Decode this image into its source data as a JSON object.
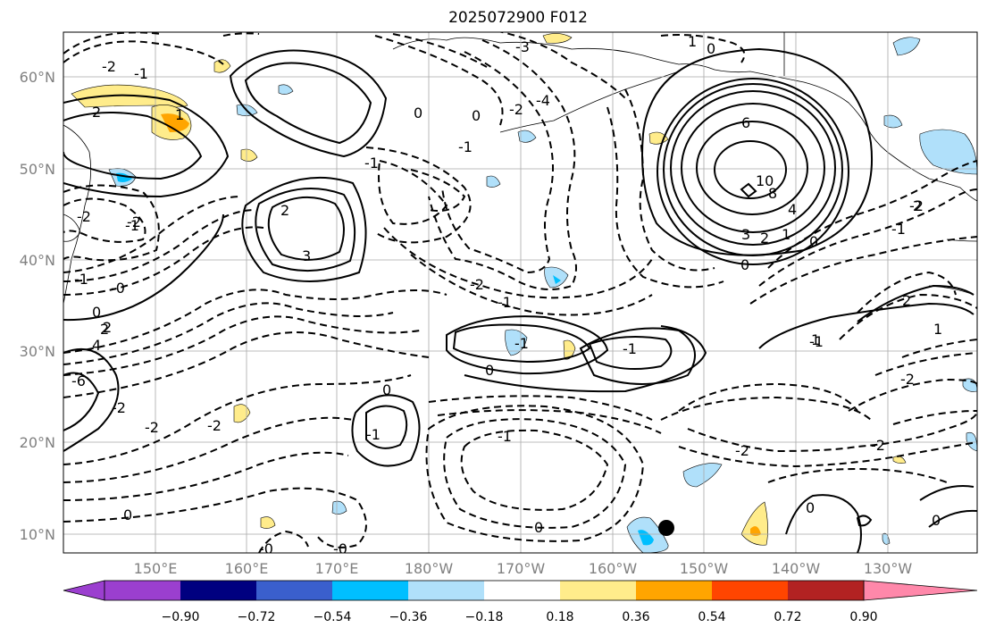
{
  "title": "2025072900 F012",
  "lat_labels": [
    "60°N",
    "50°N",
    "40°N",
    "30°N",
    "20°N",
    "10°N"
  ],
  "lon_labels": [
    "150°E",
    "160°E",
    "170°E",
    "180°W",
    "170°W",
    "160°W",
    "150°W",
    "140°W",
    "130°W"
  ],
  "colorbar": {
    "colors": [
      "#9b3fcf",
      "#000080",
      "#3a5fcd",
      "#00bfff",
      "#b0e0fa",
      "#ffffff",
      "#ffec8b",
      "#ffa500",
      "#ff4500",
      "#b22222",
      "#ff88aa"
    ],
    "ticks": [
      "−0.90",
      "−0.72",
      "−0.54",
      "−0.36",
      "−0.18",
      "0.18",
      "0.36",
      "0.54",
      "0.72",
      "0.90"
    ]
  },
  "contour_labels": [
    "-2",
    "-1",
    "2",
    "1",
    "-1",
    "-2",
    "2",
    "-1",
    "0",
    "0",
    "-1",
    "-2",
    "-3",
    "-4",
    "1",
    "0",
    "6",
    "10",
    "8",
    "4",
    "3",
    "2",
    "1",
    "0",
    "-2",
    "0",
    "-1",
    "-2",
    "3",
    "2",
    "1",
    "-1",
    "-2",
    "0",
    "-1",
    "-2",
    "-1",
    "0",
    "-2",
    "-1",
    "-2",
    "-1",
    "2",
    "-1",
    "-0",
    "-2",
    "0",
    "-1",
    "0",
    "0",
    "-6",
    "4",
    "2",
    "-0",
    "-0",
    "-2",
    "0",
    "-2",
    "0",
    "2",
    "1"
  ]
}
